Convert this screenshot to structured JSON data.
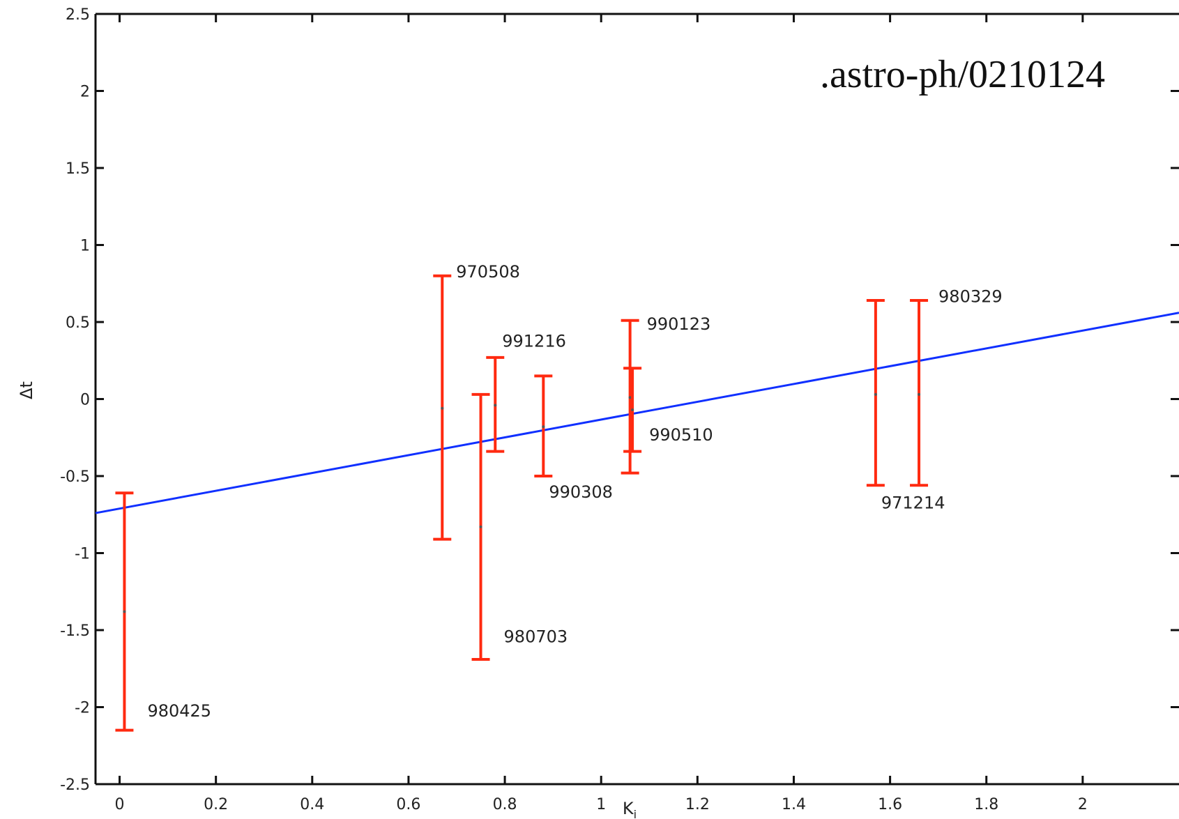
{
  "chart_data": {
    "type": "scatter",
    "title": "",
    "xlabel": "K",
    "xlabel_subscript": "i",
    "ylabel": "Δt",
    "xlim": [
      -0.05,
      2.2
    ],
    "ylim": [
      -2.5,
      2.5
    ],
    "x_ticks": [
      0,
      0.2,
      0.4,
      0.6,
      0.8,
      1,
      1.2,
      1.4,
      1.6,
      1.8,
      2
    ],
    "x_tick_labels": [
      "0",
      "0.2",
      "0.4",
      "0.6",
      "0.8",
      "1",
      "1.2",
      "1.4",
      "1.6",
      "1.8",
      "2"
    ],
    "y_ticks": [
      -2.5,
      -2,
      -1.5,
      -1,
      -0.5,
      0,
      0.5,
      1,
      1.5,
      2,
      2.5
    ],
    "y_tick_labels": [
      "-2.5",
      "-2",
      "-1.5",
      "-1",
      "-0.5",
      "0",
      "0.5",
      "1",
      "1.5",
      "2",
      "2.5"
    ],
    "grid": false,
    "annotation": ".astro-ph/0210124",
    "points": [
      {
        "label": "980425",
        "x": 0.01,
        "y": -1.38,
        "ylow": -2.15,
        "yhigh": -0.61
      },
      {
        "label": "970508",
        "x": 0.67,
        "y": -0.06,
        "ylow": -0.91,
        "yhigh": 0.8
      },
      {
        "label": "980703",
        "x": 0.75,
        "y": -0.83,
        "ylow": -1.69,
        "yhigh": 0.03
      },
      {
        "label": "991216",
        "x": 0.78,
        "y": -0.04,
        "ylow": -0.34,
        "yhigh": 0.27
      },
      {
        "label": "990308",
        "x": 0.88,
        "y": -0.18,
        "ylow": -0.5,
        "yhigh": 0.15
      },
      {
        "label": "990123",
        "x": 1.06,
        "y": 0.01,
        "ylow": -0.48,
        "yhigh": 0.51
      },
      {
        "label": "990510",
        "x": 1.065,
        "y": -0.07,
        "ylow": -0.34,
        "yhigh": 0.2
      },
      {
        "label": "971214",
        "x": 1.57,
        "y": 0.03,
        "ylow": -0.56,
        "yhigh": 0.64
      },
      {
        "label": "980329",
        "x": 1.66,
        "y": 0.03,
        "ylow": -0.56,
        "yhigh": 0.64
      }
    ],
    "fit_line": {
      "x0": -0.05,
      "y0": -0.74,
      "x1": 2.2,
      "y1": 0.56
    },
    "colors": {
      "errorbar": "#ff2a10",
      "fit": "#1030ff",
      "axis": "#111111"
    }
  }
}
